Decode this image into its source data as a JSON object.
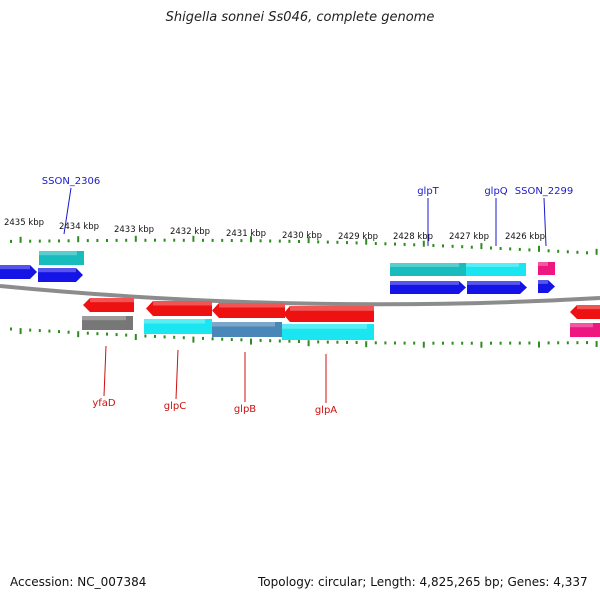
{
  "title": "Shigella sonnei Ss046, complete genome",
  "footer": {
    "accession": "Accession: NC_007384",
    "summary": "Topology: circular; Length: 4,825,265 bp; Genes: 4,337"
  },
  "colors": {
    "backbone": "#8c8c8c",
    "tick": "#2e8b1e",
    "top_label": "#1a1acc",
    "bottom_label": "#cc1111",
    "cds_forward": "#1414e6",
    "cds_reverse": "#ee1111",
    "cog_teal": "#19bcbc",
    "cog_cyan": "#19e6f0",
    "cog_steel": "#4a86b8",
    "cog_pink": "#ee1780",
    "cog_gray": "#777777"
  },
  "kbp_labels": [
    "2435 kbp",
    "2434 kbp",
    "2433 kbp",
    "2432 kbp",
    "2431 kbp",
    "2430 kbp",
    "2429 kbp",
    "2428 kbp",
    "2427 kbp",
    "2426 kbp"
  ],
  "gene_labels_top": [
    "SSON_2306",
    "glpT",
    "glpQ",
    "SSON_2299"
  ],
  "gene_labels_bottom": [
    "yfaD",
    "glpC",
    "glpB",
    "glpA"
  ]
}
